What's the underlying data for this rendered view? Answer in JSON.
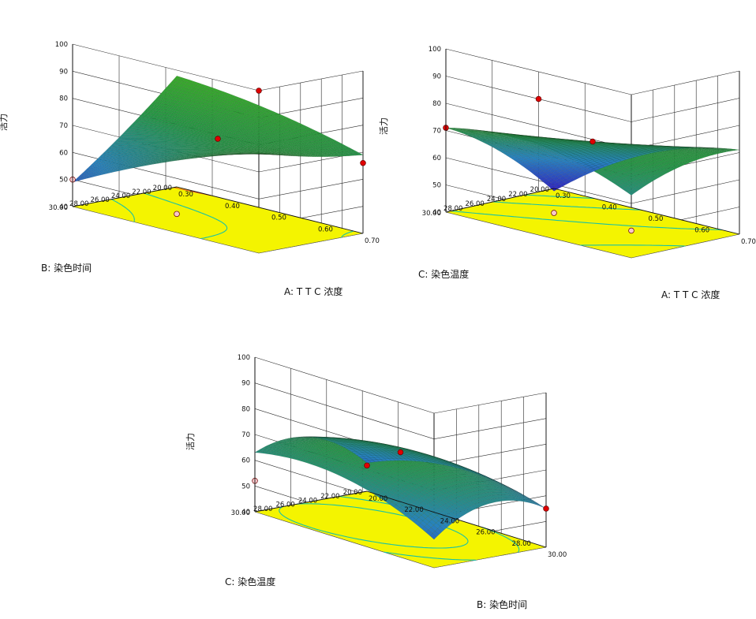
{
  "chart_data": [
    {
      "type": "surface3d",
      "zlabel": "活力",
      "xlabel": "A: T T C 浓度",
      "ylabel": "B: 染色时间",
      "x_ticks": [
        "0.30",
        "0.40",
        "0.50",
        "0.60",
        "0.70"
      ],
      "y_ticks": [
        "20.00",
        "22.00",
        "24.00",
        "26.00",
        "28.00",
        "30.00"
      ],
      "z_ticks": [
        "40",
        "50",
        "60",
        "70",
        "80",
        "90",
        "100"
      ],
      "xlim": [
        0.3,
        0.7
      ],
      "ylim": [
        20,
        30
      ],
      "zlim": [
        40,
        100
      ],
      "surface": {
        "model": "quadratic",
        "b0": 70,
        "b1": 4,
        "b2": -6,
        "b11": -2,
        "b22": 1,
        "b12": 10
      },
      "design_points": [
        {
          "x": 0.5,
          "y": 25,
          "z": 70,
          "style": "red"
        },
        {
          "x": 0.7,
          "y": 30,
          "z": 100,
          "style": "red"
        },
        {
          "x": 0.7,
          "y": 20,
          "z": 66,
          "style": "red"
        },
        {
          "x": 0.3,
          "y": 30,
          "z": 50,
          "style": "pink"
        },
        {
          "x": 0.3,
          "y": 20,
          "z": 30,
          "style": "pink"
        }
      ],
      "contours": [
        {
          "value": 60,
          "color": "#18c2a6"
        },
        {
          "value": 70,
          "color": "#18c2a6"
        },
        {
          "value": 80,
          "color": "#e85a2a"
        }
      ]
    },
    {
      "type": "surface3d",
      "zlabel": "活力",
      "xlabel": "A: T T C 浓度",
      "ylabel": "C: 染色温度",
      "x_ticks": [
        "0.30",
        "0.40",
        "0.50",
        "0.60",
        "0.70"
      ],
      "y_ticks": [
        "20.00",
        "22.00",
        "24.00",
        "26.00",
        "28.00",
        "30.00"
      ],
      "z_ticks": [
        "40",
        "50",
        "60",
        "70",
        "80",
        "90",
        "100"
      ],
      "xlim": [
        0.3,
        0.7
      ],
      "ylim": [
        20,
        30
      ],
      "zlim": [
        40,
        100
      ],
      "surface": {
        "model": "quadratic",
        "b0": 70,
        "b1": 6,
        "b2": 6,
        "b11": -6,
        "b22": -3,
        "b12": -10
      },
      "design_points": [
        {
          "x": 0.5,
          "y": 25,
          "z": 70,
          "style": "red"
        },
        {
          "x": 0.5,
          "y": 30,
          "z": 90,
          "style": "red"
        },
        {
          "x": 0.3,
          "y": 30,
          "z": 71,
          "style": "red"
        },
        {
          "x": 0.7,
          "y": 30,
          "z": 50,
          "style": "pink"
        },
        {
          "x": 0.3,
          "y": 20,
          "z": 31,
          "style": "pink"
        }
      ],
      "contours": [
        {
          "value": 50,
          "color": "#18c2a6"
        },
        {
          "value": 60,
          "color": "#18c2a6"
        },
        {
          "value": 70,
          "color": "#18c2a6"
        }
      ]
    },
    {
      "type": "surface3d",
      "zlabel": "活力",
      "xlabel": "B: 染色时间",
      "ylabel": "C: 染色温度",
      "x_ticks": [
        "20.00",
        "22.00",
        "24.00",
        "26.00",
        "28.00",
        "30.00"
      ],
      "y_ticks": [
        "20.00",
        "22.00",
        "24.00",
        "26.00",
        "28.00",
        "30.00"
      ],
      "z_ticks": [
        "40",
        "50",
        "60",
        "70",
        "80",
        "90",
        "100"
      ],
      "xlim": [
        20,
        30
      ],
      "ylim": [
        20,
        30
      ],
      "zlim": [
        40,
        100
      ],
      "surface": {
        "model": "quadratic",
        "b0": 70,
        "b1": -2,
        "b2": 2,
        "b11": -7,
        "b22": -8,
        "b12": -4
      },
      "design_points": [
        {
          "x": 25,
          "y": 25,
          "z": 70,
          "style": "red"
        },
        {
          "x": 30,
          "y": 20,
          "z": 55,
          "style": "red"
        },
        {
          "x": 20,
          "y": 20,
          "z": 50,
          "style": "red"
        },
        {
          "x": 20,
          "y": 30,
          "z": 52,
          "style": "pink"
        }
      ],
      "contours": [
        {
          "value": 60,
          "color": "#18c2a6"
        },
        {
          "value": 66,
          "color": "#18c2a6"
        }
      ]
    }
  ]
}
